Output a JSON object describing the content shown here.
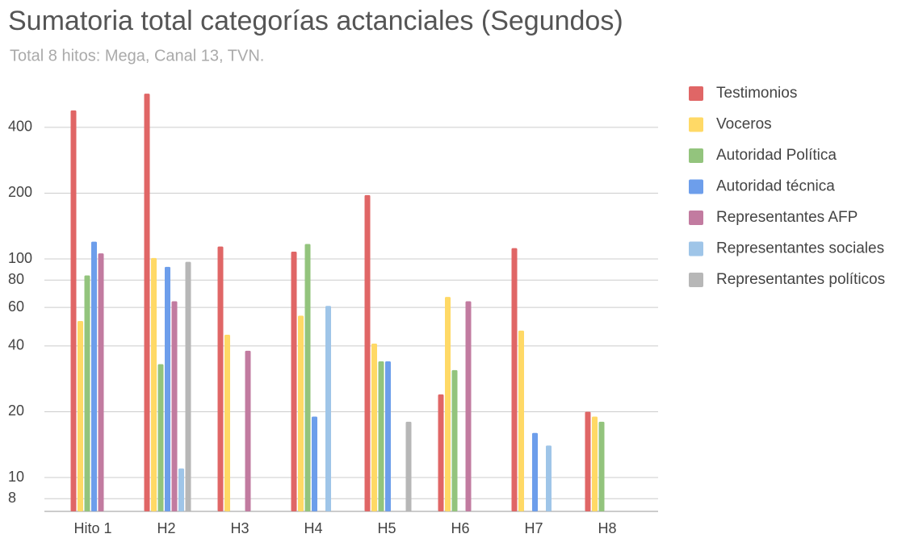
{
  "chart_data": {
    "type": "bar",
    "title": "Sumatoria total categorías actanciales (Segundos)",
    "subtitle": "Total 8 hitos: Mega, Canal 13, TVN.",
    "categories": [
      "Hito 1",
      "H2",
      "H3",
      "H4",
      "H5",
      "H6",
      "H7",
      "H8"
    ],
    "series": [
      {
        "name": "Testimonios",
        "color": "#e06666",
        "values": [
          478,
          570,
          114,
          108,
          196,
          24,
          112,
          20
        ]
      },
      {
        "name": "Voceros",
        "color": "#ffd966",
        "values": [
          52,
          101,
          45,
          55,
          41,
          67,
          47,
          19
        ]
      },
      {
        "name": "Autoridad Política",
        "color": "#93c47d",
        "values": [
          84,
          33,
          null,
          117,
          34,
          31,
          null,
          18
        ]
      },
      {
        "name": "Autoridad técnica",
        "color": "#6d9eeb",
        "values": [
          120,
          92,
          null,
          19,
          34,
          null,
          16,
          null
        ]
      },
      {
        "name": "Representantes AFP",
        "color": "#c27ba0",
        "values": [
          106,
          64,
          38,
          null,
          null,
          64,
          null,
          null
        ]
      },
      {
        "name": "Representantes sociales",
        "color": "#9fc5e8",
        "values": [
          null,
          11,
          null,
          61,
          null,
          null,
          14,
          null
        ]
      },
      {
        "name": "Representantes políticos",
        "color": "#b7b7b7",
        "values": [
          null,
          97,
          null,
          null,
          18,
          null,
          null,
          null
        ]
      }
    ],
    "ylim": [
      7,
      600
    ],
    "yticks": [
      8,
      10,
      20,
      40,
      60,
      80,
      100,
      200,
      400
    ],
    "log_scale": true,
    "grid": true,
    "legend_position": "right"
  }
}
